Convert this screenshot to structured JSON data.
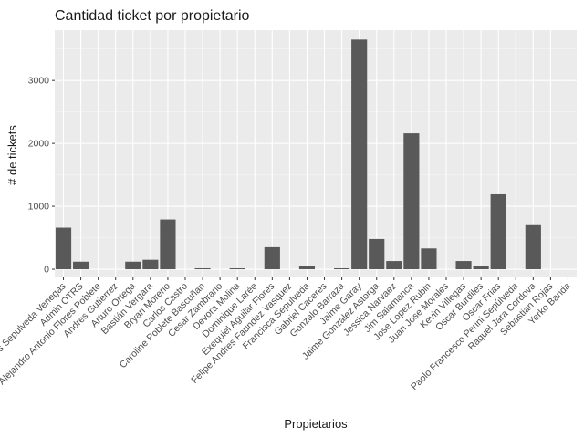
{
  "chart_data": {
    "type": "bar",
    "title": "Cantidad ticket por propietario",
    "xlabel": "Propietarios",
    "ylabel": "# de tickets",
    "ylim": [
      -130,
      3800
    ],
    "yticks": [
      0,
      1000,
      2000,
      3000
    ],
    "ytick_labels": [
      "0",
      "1000",
      "2000",
      "3000"
    ],
    "bar_color": "#595959",
    "panel_background": "#ebebeb",
    "grid": true,
    "categories": [
      "Alexis Sepulveda Venegas",
      "Admin OTRS",
      "Alejandro Antonio Flores Poblete",
      "Andres Gutierrez",
      "Arturo Ortega",
      "Bastián Vergara",
      "Bryan Moreno",
      "Carlos Castro",
      "Caroline Poblete Bascuñan",
      "Cesar Zambrano",
      "Devora Molina",
      "Dominique Larée",
      "Exequiel Aguilar Flores",
      "Felipe Andres Faundez Vasquez",
      "Francisca Sepulveda",
      "Gabriel Caceres",
      "Gonzalo Barraza",
      "Jaime Garay",
      "Jaime Gonzalez Astorga",
      "Jessica Narvaez",
      "Jim Salamanca",
      "Jose Lopez Rubin",
      "Juan Jose Morales",
      "Kevin Villegas",
      "Oscar Burdiles",
      "Oscar Frias",
      "Paolo Francesco Perini Sepúlveda",
      "Raquel Jara Cordova",
      "Sebastian Rojas",
      "Yerko Banda"
    ],
    "values": [
      660,
      120,
      0,
      0,
      120,
      150,
      790,
      0,
      15,
      0,
      15,
      0,
      350,
      0,
      50,
      0,
      15,
      3650,
      480,
      130,
      2160,
      330,
      0,
      130,
      50,
      1190,
      0,
      700,
      0,
      0
    ]
  }
}
